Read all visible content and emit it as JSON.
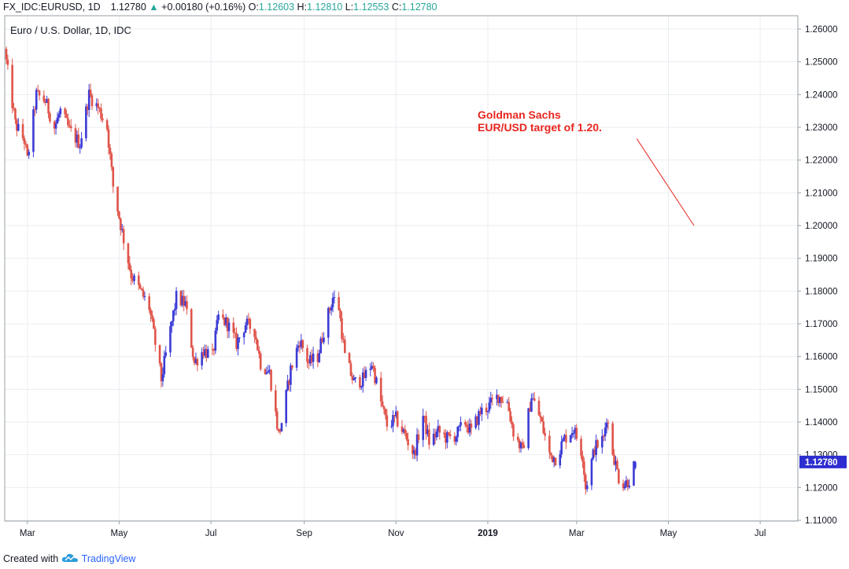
{
  "header": {
    "symbol": "FX_IDC:EURUSD,",
    "interval": "1D",
    "last": "1.12780",
    "change": "+0.00180 (+0.16%)",
    "o_label": "O:",
    "o_value": "1.12603",
    "h_label": "H:",
    "h_value": "1.12810",
    "l_label": "L:",
    "l_value": "1.12553",
    "c_label": "C:",
    "c_value": "1.12780"
  },
  "footer": {
    "created_with": "Created with",
    "brand": "TradingView"
  },
  "annotation": {
    "line1": "Goldman Sachs",
    "line2": "EUR/USD target of 1.20."
  },
  "colors": {
    "up": "#3b3bd6",
    "down": "#e0544a",
    "grid": "#eaedf1",
    "annotation": "#e8261f",
    "price_tag": "#2d2dd0"
  },
  "chart_data": {
    "type": "candlestick",
    "title": "Euro / U.S. Dollar, 1D, IDC",
    "ylim": [
      1.11,
      1.26
    ],
    "y_ticks": [
      "1.26000",
      "1.25000",
      "1.24000",
      "1.23000",
      "1.22000",
      "1.21000",
      "1.20000",
      "1.19000",
      "1.18000",
      "1.17000",
      "1.16000",
      "1.15000",
      "1.14000",
      "1.13000",
      "1.12000",
      "1.11000"
    ],
    "x_ticks": [
      {
        "date": "2018-03-01",
        "label": "Mar"
      },
      {
        "date": "2018-05-01",
        "label": "May"
      },
      {
        "date": "2018-07-01",
        "label": "Jul"
      },
      {
        "date": "2018-09-01",
        "label": "Sep"
      },
      {
        "date": "2018-11-01",
        "label": "Nov"
      },
      {
        "date": "2019-01-01",
        "label": "2019"
      },
      {
        "date": "2019-03-01",
        "label": "Mar"
      },
      {
        "date": "2019-05-01",
        "label": "May"
      },
      {
        "date": "2019-07-01",
        "label": "Jul"
      }
    ],
    "x_range": [
      "2018-02-15",
      "2019-07-25"
    ],
    "last_price_label": "1.12780",
    "last_price": 1.1278,
    "target_line": {
      "from": {
        "date": "2019-04-10",
        "y": 1.2265
      },
      "to": {
        "date": "2019-05-18",
        "y": 1.2
      }
    },
    "series": [
      {
        "date": "2018-02-15",
        "close": 1.25
      },
      {
        "date": "2018-02-21",
        "close": 1.231
      },
      {
        "date": "2018-02-27",
        "close": 1.226
      },
      {
        "date": "2018-03-01",
        "close": 1.22
      },
      {
        "date": "2018-03-07",
        "close": 1.24
      },
      {
        "date": "2018-03-13",
        "close": 1.238
      },
      {
        "date": "2018-03-19",
        "close": 1.23
      },
      {
        "date": "2018-03-23",
        "close": 1.235
      },
      {
        "date": "2018-03-29",
        "close": 1.229
      },
      {
        "date": "2018-04-05",
        "close": 1.225
      },
      {
        "date": "2018-04-11",
        "close": 1.24
      },
      {
        "date": "2018-04-17",
        "close": 1.236
      },
      {
        "date": "2018-04-23",
        "close": 1.23
      },
      {
        "date": "2018-04-27",
        "close": 1.212
      },
      {
        "date": "2018-05-03",
        "close": 1.198
      },
      {
        "date": "2018-05-09",
        "close": 1.185
      },
      {
        "date": "2018-05-15",
        "close": 1.18
      },
      {
        "date": "2018-05-21",
        "close": 1.175
      },
      {
        "date": "2018-05-25",
        "close": 1.164
      },
      {
        "date": "2018-05-29",
        "close": 1.153
      },
      {
        "date": "2018-06-04",
        "close": 1.168
      },
      {
        "date": "2018-06-08",
        "close": 1.178
      },
      {
        "date": "2018-06-14",
        "close": 1.176
      },
      {
        "date": "2018-06-20",
        "close": 1.158
      },
      {
        "date": "2018-06-26",
        "close": 1.162
      },
      {
        "date": "2018-07-02",
        "close": 1.16
      },
      {
        "date": "2018-07-06",
        "close": 1.172
      },
      {
        "date": "2018-07-12",
        "close": 1.17
      },
      {
        "date": "2018-07-18",
        "close": 1.164
      },
      {
        "date": "2018-07-24",
        "close": 1.17
      },
      {
        "date": "2018-07-30",
        "close": 1.168
      },
      {
        "date": "2018-08-03",
        "close": 1.158
      },
      {
        "date": "2018-08-09",
        "close": 1.155
      },
      {
        "date": "2018-08-15",
        "close": 1.136
      },
      {
        "date": "2018-08-17",
        "close": 1.14
      },
      {
        "date": "2018-08-23",
        "close": 1.156
      },
      {
        "date": "2018-08-29",
        "close": 1.165
      },
      {
        "date": "2018-09-04",
        "close": 1.158
      },
      {
        "date": "2018-09-10",
        "close": 1.16
      },
      {
        "date": "2018-09-14",
        "close": 1.168
      },
      {
        "date": "2018-09-20",
        "close": 1.178
      },
      {
        "date": "2018-09-24",
        "close": 1.175
      },
      {
        "date": "2018-09-28",
        "close": 1.16
      },
      {
        "date": "2018-10-04",
        "close": 1.152
      },
      {
        "date": "2018-10-10",
        "close": 1.153
      },
      {
        "date": "2018-10-16",
        "close": 1.158
      },
      {
        "date": "2018-10-22",
        "close": 1.146
      },
      {
        "date": "2018-10-26",
        "close": 1.139
      },
      {
        "date": "2018-11-01",
        "close": 1.141
      },
      {
        "date": "2018-11-07",
        "close": 1.136
      },
      {
        "date": "2018-11-13",
        "close": 1.13
      },
      {
        "date": "2018-11-19",
        "close": 1.142
      },
      {
        "date": "2018-11-23",
        "close": 1.134
      },
      {
        "date": "2018-11-29",
        "close": 1.137
      },
      {
        "date": "2018-12-05",
        "close": 1.135
      },
      {
        "date": "2018-12-11",
        "close": 1.136
      },
      {
        "date": "2018-12-17",
        "close": 1.14
      },
      {
        "date": "2018-12-21",
        "close": 1.137
      },
      {
        "date": "2018-12-27",
        "close": 1.143
      },
      {
        "date": "2019-01-02",
        "close": 1.145
      },
      {
        "date": "2019-01-08",
        "close": 1.148
      },
      {
        "date": "2019-01-14",
        "close": 1.146
      },
      {
        "date": "2019-01-18",
        "close": 1.137
      },
      {
        "date": "2019-01-24",
        "close": 1.131
      },
      {
        "date": "2019-01-30",
        "close": 1.148
      },
      {
        "date": "2019-02-05",
        "close": 1.141
      },
      {
        "date": "2019-02-11",
        "close": 1.13
      },
      {
        "date": "2019-02-15",
        "close": 1.129
      },
      {
        "date": "2019-02-21",
        "close": 1.135
      },
      {
        "date": "2019-02-27",
        "close": 1.138
      },
      {
        "date": "2019-03-05",
        "close": 1.13
      },
      {
        "date": "2019-03-07",
        "close": 1.12
      },
      {
        "date": "2019-03-13",
        "close": 1.132
      },
      {
        "date": "2019-03-19",
        "close": 1.135
      },
      {
        "date": "2019-03-21",
        "close": 1.142
      },
      {
        "date": "2019-03-25",
        "close": 1.131
      },
      {
        "date": "2019-03-29",
        "close": 1.123
      },
      {
        "date": "2019-04-02",
        "close": 1.121
      },
      {
        "date": "2019-04-05",
        "close": 1.1225
      },
      {
        "date": "2019-04-09",
        "close": 1.1278
      }
    ]
  }
}
